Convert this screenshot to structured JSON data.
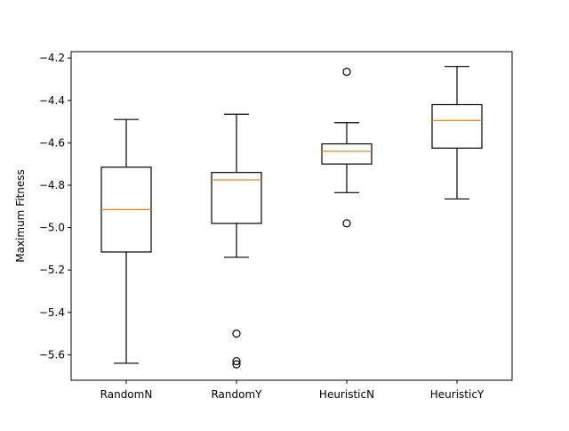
{
  "chart_data": {
    "type": "box",
    "title": "",
    "xlabel": "",
    "ylabel": "Maximum Fitness",
    "ylim": [
      -5.72,
      -4.17
    ],
    "yticks": [
      -5.6,
      -5.4,
      -5.2,
      -5.0,
      -4.8,
      -4.6,
      -4.4,
      -4.2
    ],
    "ytick_labels": [
      "−5.6",
      "−5.4",
      "−5.2",
      "−5.0",
      "−4.8",
      "−4.6",
      "−4.4",
      "−4.2"
    ],
    "categories": [
      "RandomN",
      "RandomY",
      "HeuristicN",
      "HeuristicY"
    ],
    "boxes": [
      {
        "category": "RandomN",
        "whisker_low": -5.64,
        "q1": -5.115,
        "median": -4.915,
        "q3": -4.715,
        "whisker_high": -4.49,
        "outliers": []
      },
      {
        "category": "RandomY",
        "whisker_low": -5.14,
        "q1": -4.98,
        "median": -4.775,
        "q3": -4.74,
        "whisker_high": -4.465,
        "outliers": [
          -5.5,
          -5.63,
          -5.645
        ]
      },
      {
        "category": "HeuristicN",
        "whisker_low": -4.835,
        "q1": -4.7,
        "median": -4.64,
        "q3": -4.605,
        "whisker_high": -4.505,
        "outliers": [
          -4.265,
          -4.98
        ]
      },
      {
        "category": "HeuristicY",
        "whisker_low": -4.865,
        "q1": -4.625,
        "median": -4.495,
        "q3": -4.42,
        "whisker_high": -4.24,
        "outliers": []
      }
    ],
    "colors": {
      "box": "#000000",
      "median": "#ff7f0e",
      "outlier": "#000000"
    },
    "grid": false,
    "legend": "none"
  }
}
